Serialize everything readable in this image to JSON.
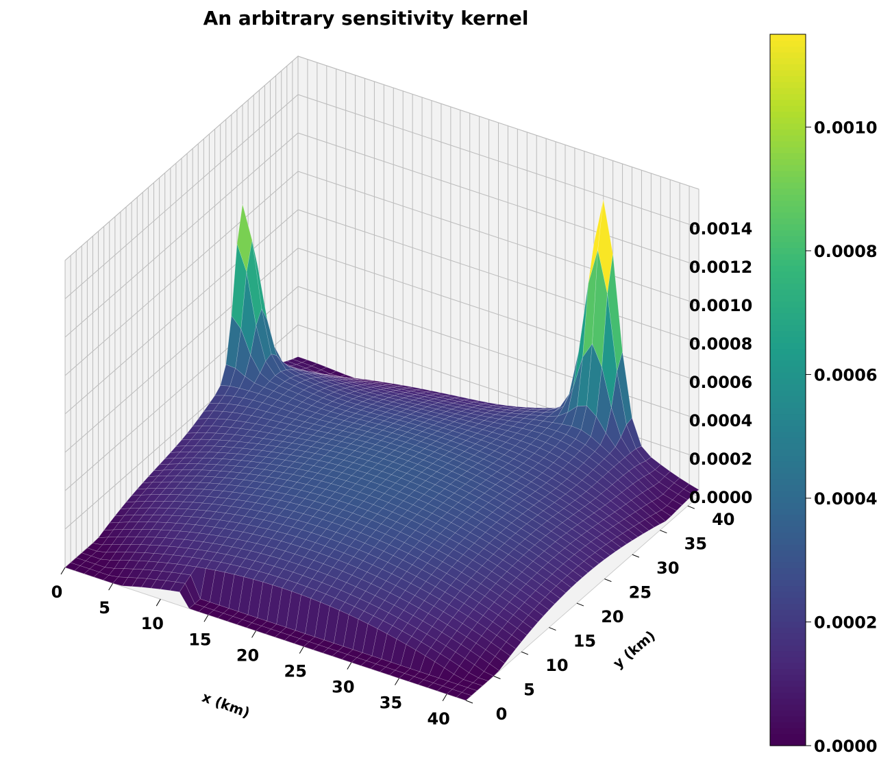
{
  "chart_data": {
    "type": "surface",
    "title": "An arbitrary sensitivity kernel",
    "xlabel": "x (km)",
    "ylabel": "y (km)",
    "zlabel": "",
    "x_range": [
      0,
      42
    ],
    "y_range": [
      0,
      42
    ],
    "z_range": [
      0,
      0.0016
    ],
    "x_ticks": [
      "0",
      "5",
      "10",
      "15",
      "20",
      "25",
      "30",
      "35",
      "40"
    ],
    "y_ticks": [
      "0",
      "5",
      "10",
      "15",
      "20",
      "25",
      "30",
      "35",
      "40"
    ],
    "z_ticks": [
      "0.0000",
      "0.0002",
      "0.0004",
      "0.0006",
      "0.0008",
      "0.0010",
      "0.0012",
      "0.0014"
    ],
    "colormap": "viridis",
    "colorbar": {
      "range": [
        0,
        0.00115
      ],
      "ticks": [
        "0.0000",
        "0.0002",
        "0.0004",
        "0.0006",
        "0.0008",
        "0.0010"
      ]
    },
    "grid": true,
    "features": {
      "peak_1": {
        "x": 0,
        "y": 32,
        "value": 0.00125
      },
      "peak_2": {
        "x": 32,
        "y": 42,
        "value": 0.00155
      },
      "background_center": 0.0003,
      "floor_value": 0.0
    }
  }
}
